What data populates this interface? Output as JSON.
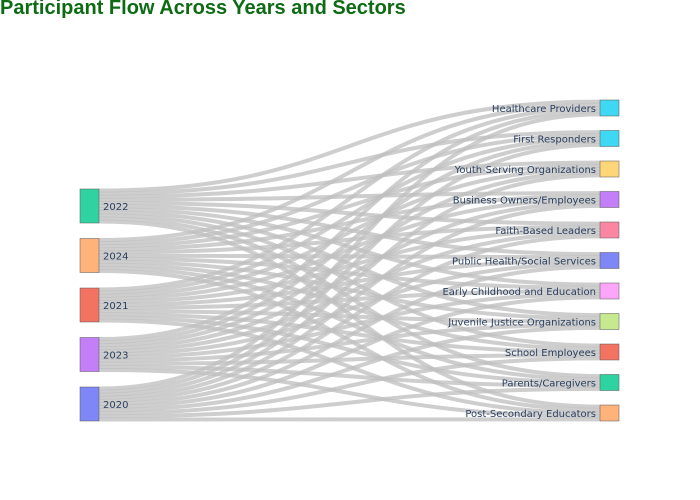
{
  "chart_data": {
    "type": "sankey",
    "title": "Participant Flow Across Years and Sectors",
    "link_color": "#c0c0c0",
    "sources": [
      {
        "name": "2022",
        "color": "#2fd3a2"
      },
      {
        "name": "2024",
        "color": "#ffb37a"
      },
      {
        "name": "2021",
        "color": "#f37362"
      },
      {
        "name": "2023",
        "color": "#c27ff7"
      },
      {
        "name": "2020",
        "color": "#7f87f7"
      }
    ],
    "targets": [
      {
        "name": "Healthcare Providers",
        "color": "#3ed8f2"
      },
      {
        "name": "First Responders",
        "color": "#3ed8f2"
      },
      {
        "name": "Youth-Serving Organizations",
        "color": "#ffd57a"
      },
      {
        "name": "Business Owners/Employees",
        "color": "#c27ff7"
      },
      {
        "name": "Faith-Based Leaders",
        "color": "#fb86a4"
      },
      {
        "name": "Public Health/Social Services",
        "color": "#7f87f7"
      },
      {
        "name": "Early Childhood and Education",
        "color": "#fca6f9"
      },
      {
        "name": "Juvenile Justice Organizations",
        "color": "#c6e990"
      },
      {
        "name": "School Employees",
        "color": "#f37362"
      },
      {
        "name": "Parents/Caregivers",
        "color": "#2fd3a2"
      },
      {
        "name": "Post-Secondary Educators",
        "color": "#ffb37a"
      }
    ],
    "links_note": "each year links to every sector with one unit of flow"
  }
}
